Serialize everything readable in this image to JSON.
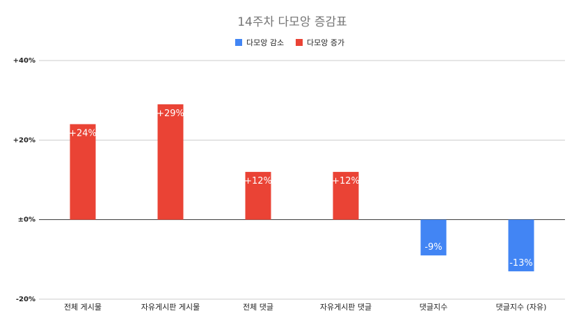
{
  "chart_data": {
    "type": "bar",
    "title": "14주차 다모앙 증감표",
    "categories": [
      "전체 게시물",
      "자유게시판 게시물",
      "전체 댓글",
      "자유게시판 댓글",
      "댓글지수",
      "댓글지수 (자유)"
    ],
    "values": [
      24,
      29,
      12,
      12,
      -9,
      -13
    ],
    "data_labels": [
      "+24%",
      "+29%",
      "+12%",
      "+12%",
      "-9%",
      "-13%"
    ],
    "ylim": [
      -20,
      40
    ],
    "yticks": [
      {
        "value": 40,
        "label": "+40%"
      },
      {
        "value": 20,
        "label": "+20%"
      },
      {
        "value": 0,
        "label": "±0%"
      },
      {
        "value": -20,
        "label": "-20%"
      }
    ],
    "legend": {
      "position": "top",
      "items": [
        {
          "label": "다모앙 감소",
          "color": "#4285f4"
        },
        {
          "label": "다모앙 증가",
          "color": "#ea4335"
        }
      ]
    },
    "colors": {
      "increase": "#ea4335",
      "decrease": "#4285f4"
    },
    "grid": true
  }
}
